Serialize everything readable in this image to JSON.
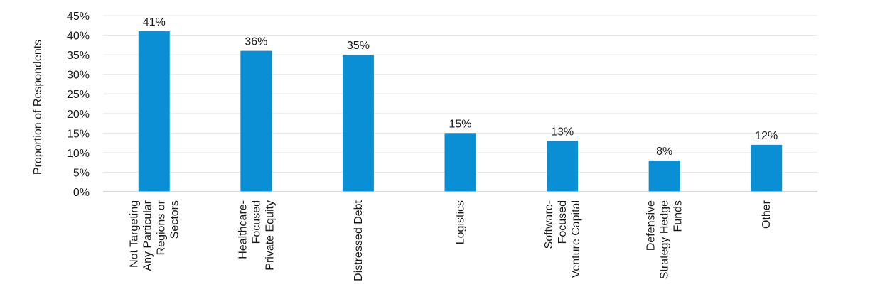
{
  "chart_data": {
    "type": "bar",
    "title": "",
    "xlabel": "",
    "ylabel": "Proportion of Respondents",
    "ylim": [
      0,
      45
    ],
    "y_ticks": [
      "0%",
      "5%",
      "10%",
      "15%",
      "20%",
      "25%",
      "30%",
      "35%",
      "40%",
      "45%"
    ],
    "grid": true,
    "legend": "none",
    "categories": [
      "Not Targeting Any Particular Regions or Sectors",
      "Healthcare-Focused Private Equity",
      "Distressed Debt",
      "Logistics",
      "Software-Focused Venture Capital",
      "Defensive Strategy Hedge Funds",
      "Other"
    ],
    "category_lines": [
      [
        "Not Targeting",
        "Any Particular",
        "Regions or",
        "Sectors"
      ],
      [
        "Healthcare-",
        "Focused",
        "Private Equity"
      ],
      [
        "Distressed Debt"
      ],
      [
        "Logistics"
      ],
      [
        "Software-",
        "Focused",
        "Venture Capital"
      ],
      [
        "Defensive",
        "Strategy Hedge",
        "Funds"
      ],
      [
        "Other"
      ]
    ],
    "values": [
      41,
      36,
      35,
      15,
      13,
      8,
      12
    ],
    "data_labels": [
      "41%",
      "36%",
      "35%",
      "15%",
      "13%",
      "8%",
      "12%"
    ],
    "bar_color": "#0a8fd4",
    "grid_color": "#e8e8e8",
    "axis_color": "#c8c8c8"
  }
}
